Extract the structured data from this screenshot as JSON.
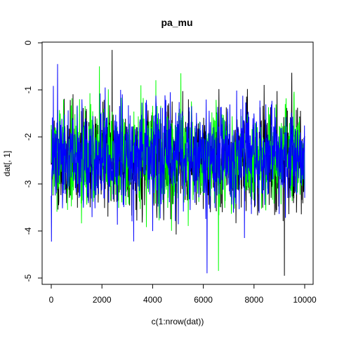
{
  "chart_data": {
    "type": "line",
    "title": "pa_mu",
    "xlabel": "c(1:nrow(dat))",
    "ylabel": "dat[, 1]",
    "xlim": [
      0,
      10000
    ],
    "ylim": [
      -5,
      0
    ],
    "x_ticks": [
      "0",
      "2000",
      "4000",
      "6000",
      "8000",
      "10000"
    ],
    "y_ticks": [
      "-5",
      "-4",
      "-3",
      "-2",
      "-1",
      "0"
    ],
    "grid": false,
    "legend": "none",
    "n_points": 10000,
    "series": [
      {
        "color": "#000000",
        "summary": {
          "mean": -2.45,
          "min": -4.95,
          "max": -0.15
        },
        "notable_points": [
          {
            "x": 2400,
            "y": -0.15
          },
          {
            "x": 9200,
            "y": -4.95
          }
        ]
      },
      {
        "color": "#00ff00",
        "summary": {
          "mean": -2.45,
          "min": -4.85,
          "max": -0.5
        },
        "notable_points": [
          {
            "x": 1900,
            "y": -0.5
          },
          {
            "x": 6600,
            "y": -4.85
          }
        ]
      },
      {
        "color": "#0000ff",
        "summary": {
          "mean": -2.45,
          "min": -4.9,
          "max": -0.45
        },
        "notable_points": [
          {
            "x": 250,
            "y": -0.45
          },
          {
            "x": 6150,
            "y": -4.9
          }
        ]
      }
    ]
  }
}
